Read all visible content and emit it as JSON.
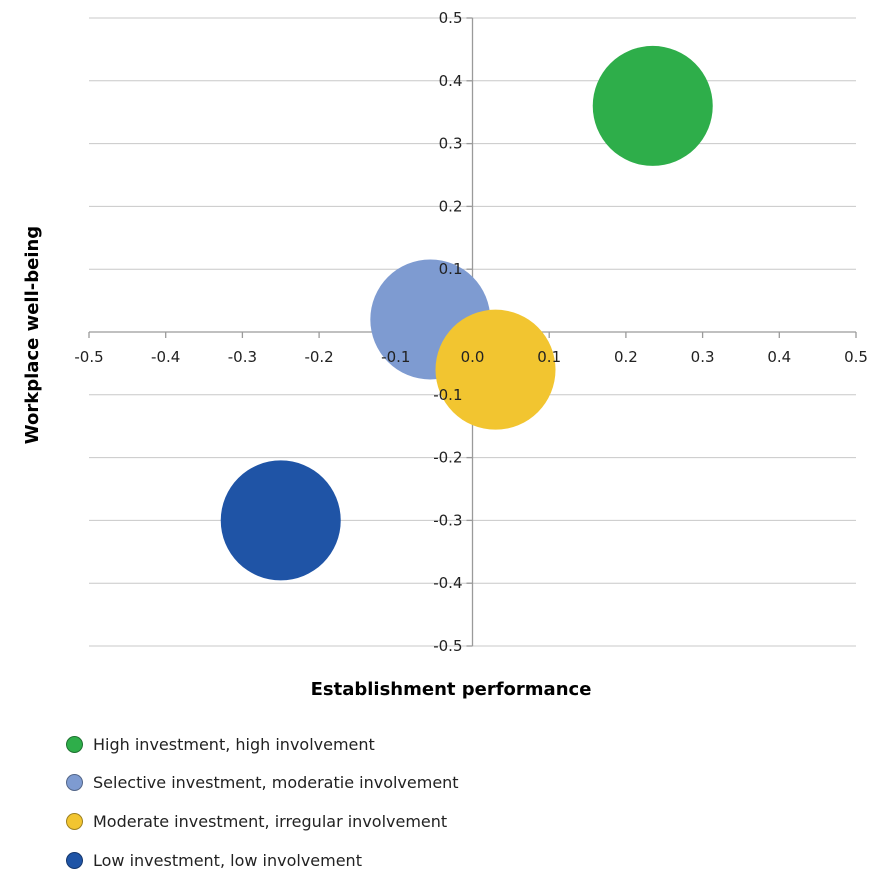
{
  "chart_data": {
    "type": "bubble",
    "title": "",
    "xlabel": "Establishment performance",
    "ylabel": "Workplace well-being",
    "xlim": [
      -0.5,
      0.5
    ],
    "ylim": [
      -0.5,
      0.5
    ],
    "x_ticks": [
      "-0.5",
      "-0.4",
      "-0.3",
      "-0.2",
      "-0.1",
      "0.0",
      "0.1",
      "0.2",
      "0.3",
      "0.4",
      "0.5"
    ],
    "y_ticks": [
      "0.5",
      "0.4",
      "0.3",
      "0.2",
      "0.1",
      "-0.1",
      "-0.2",
      "-0.3",
      "-0.4",
      "-0.5"
    ],
    "grid": "horizontal",
    "legend_position": "bottom",
    "series": [
      {
        "name": "High investment, high involvement",
        "x": 0.235,
        "y": 0.36,
        "color": "#2eae4a"
      },
      {
        "name": "Selective investment, moderatie involvement",
        "x": -0.055,
        "y": 0.02,
        "color": "#7e9bd1"
      },
      {
        "name": "Moderate investment, irregular involvement",
        "x": 0.03,
        "y": -0.06,
        "color": "#f2c530"
      },
      {
        "name": "Low investment, low involvement",
        "x": -0.25,
        "y": -0.3,
        "color": "#1f54a6"
      }
    ]
  }
}
